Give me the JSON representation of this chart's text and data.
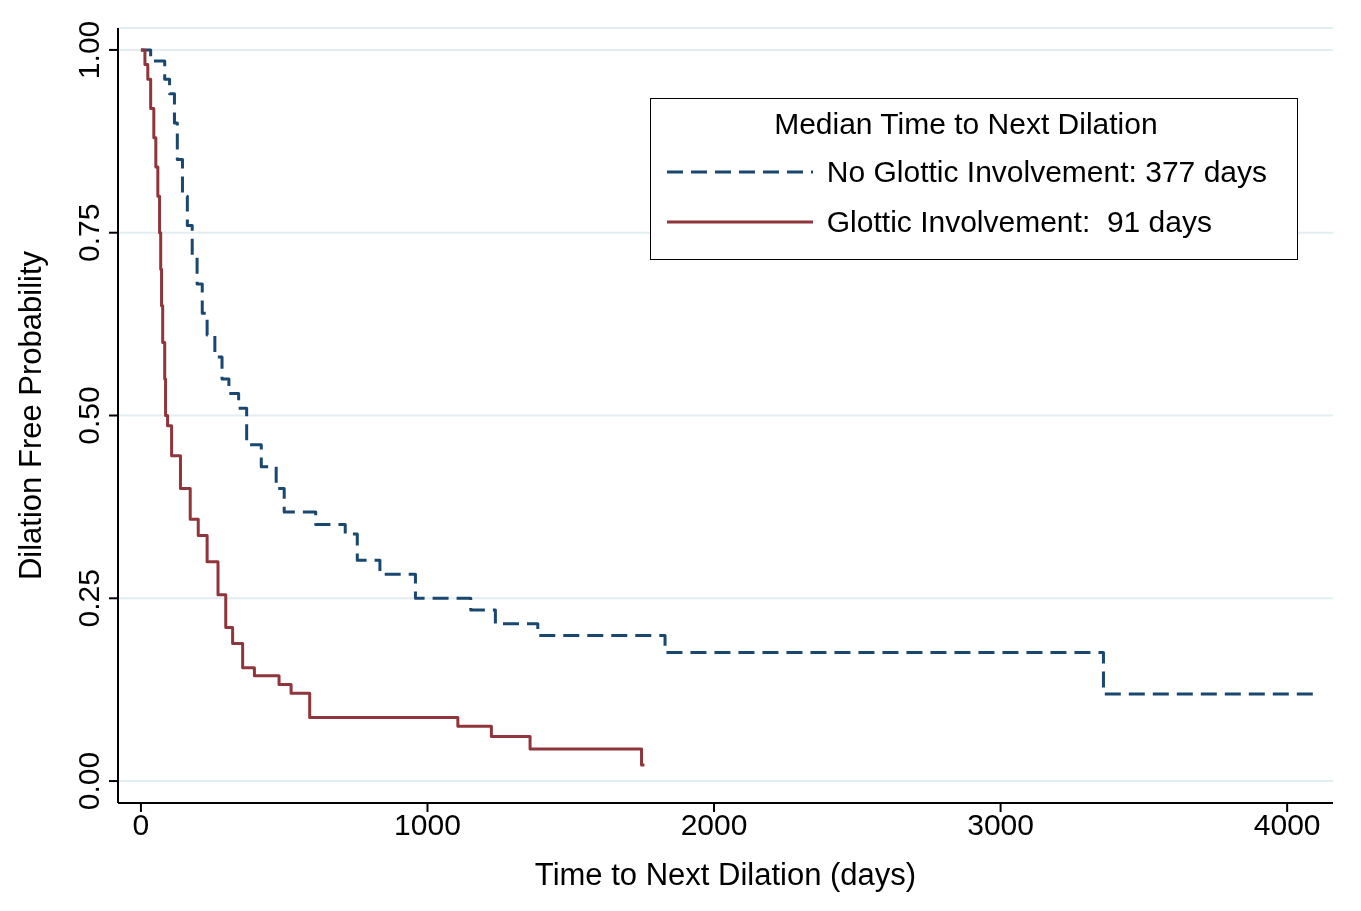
{
  "chart_data": {
    "type": "step",
    "xlabel": "Time to Next Dilation (days)",
    "ylabel": "Dilation Free Probability",
    "legend_title": "Median Time to Next Dilation",
    "legend": "top right",
    "grid": "y",
    "marker": "none",
    "xlim": [
      -80,
      4160
    ],
    "xticks": [
      0,
      1000,
      2000,
      3000,
      4000
    ],
    "ylim": [
      -0.03,
      1.03
    ],
    "yticks": [
      {
        "value": 0,
        "label": "0.00"
      },
      {
        "value": 0.25,
        "label": "0.25"
      },
      {
        "value": 0.5,
        "label": "0.50"
      },
      {
        "value": 0.75,
        "label": "0.75"
      },
      {
        "value": 1,
        "label": "1.00"
      }
    ],
    "series": [
      {
        "name": "No Glottic Involvement: 377 days",
        "color": "#1a476f",
        "line_style": "dashed",
        "x": [
          0,
          34,
          83,
          100,
          117,
          127,
          145,
          162,
          179,
          196,
          214,
          231,
          258,
          283,
          307,
          341,
          369,
          420,
          472,
          500,
          610,
          713,
          755,
          834,
          958,
          1151,
          1237,
          1385,
          1829,
          3359,
          4096
        ],
        "values": [
          1,
          0.985,
          0.96,
          0.94,
          0.9,
          0.85,
          0.8,
          0.76,
          0.72,
          0.68,
          0.64,
          0.61,
          0.58,
          0.55,
          0.53,
          0.51,
          0.46,
          0.43,
          0.4,
          0.368,
          0.351,
          0.338,
          0.302,
          0.283,
          0.25,
          0.234,
          0.215,
          0.199,
          0.176,
          0.119,
          0.119
        ]
      },
      {
        "name": "Glottic Involvement:  91 days",
        "color": "#90353b",
        "line_style": "solid",
        "x": [
          0,
          14,
          24,
          34,
          45,
          52,
          59,
          65,
          69,
          72,
          76,
          83,
          86,
          93,
          107,
          138,
          172,
          200,
          231,
          269,
          296,
          320,
          355,
          396,
          482,
          524,
          589,
          1106,
          1223,
          1358,
          1747,
          1757
        ],
        "values": [
          1,
          0.98,
          0.96,
          0.92,
          0.88,
          0.84,
          0.8,
          0.75,
          0.7,
          0.65,
          0.6,
          0.55,
          0.5,
          0.486,
          0.445,
          0.4,
          0.358,
          0.336,
          0.3,
          0.255,
          0.21,
          0.188,
          0.155,
          0.144,
          0.132,
          0.12,
          0.087,
          0.075,
          0.061,
          0.044,
          0.022,
          0.022
        ]
      }
    ]
  }
}
